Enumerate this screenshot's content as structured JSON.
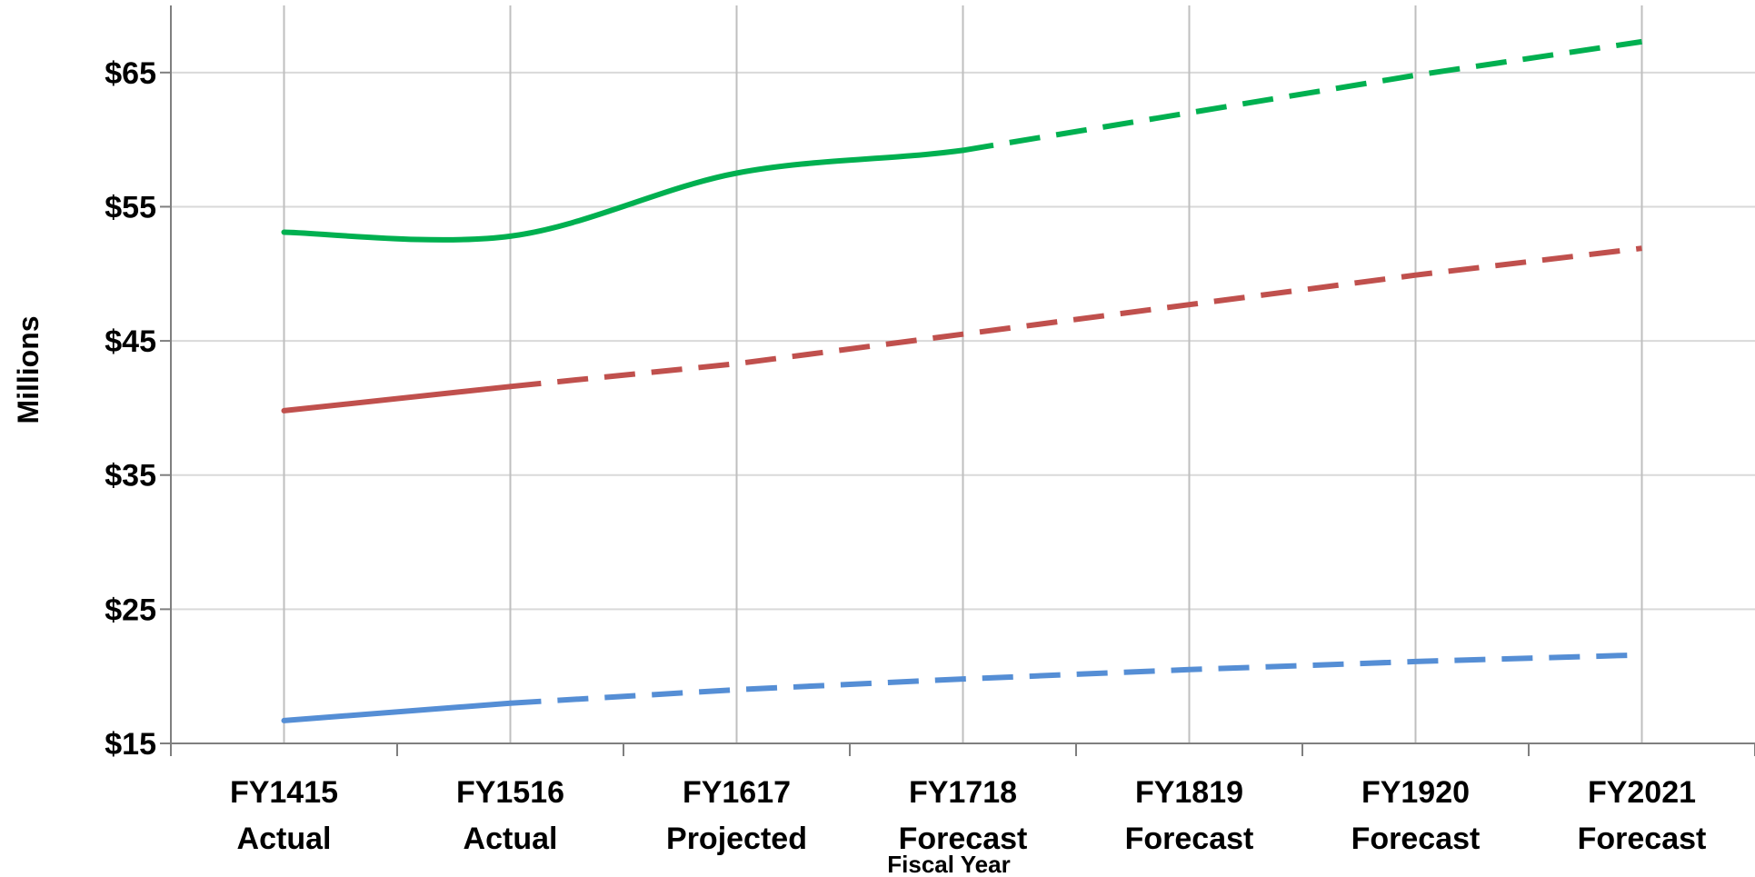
{
  "chart_data": {
    "type": "line",
    "title": "",
    "xlabel": "Fiscal Year",
    "ylabel": "Millions",
    "ylim": [
      15,
      70
    ],
    "yticks": [
      15,
      25,
      35,
      45,
      55,
      65
    ],
    "ytick_labels": [
      "$15",
      "$25",
      "$35",
      "$45",
      "$55",
      "$65"
    ],
    "categories": [
      [
        "FY1415",
        "Actual"
      ],
      [
        "FY1516",
        "Actual"
      ],
      [
        "FY1617",
        "Projected"
      ],
      [
        "FY1718",
        "Forecast"
      ],
      [
        "FY1819",
        "Forecast"
      ],
      [
        "FY1920",
        "Forecast"
      ],
      [
        "FY2021",
        "Forecast"
      ]
    ],
    "grid": true,
    "legend": "none",
    "series": [
      {
        "color": "#00B050",
        "values": [
          53.1,
          52.8,
          57.5,
          59.2,
          62.0,
          64.8,
          67.3
        ],
        "solid_through_index": 3,
        "smooth": true
      },
      {
        "color": "#C0504D",
        "values": [
          39.8,
          41.6,
          43.3,
          45.5,
          47.7,
          49.9,
          51.9
        ],
        "solid_through_index": 1,
        "smooth": false
      },
      {
        "color": "#558ED5",
        "values": [
          16.7,
          18.0,
          19.0,
          19.8,
          20.5,
          21.1,
          21.6
        ],
        "solid_through_index": 1,
        "smooth": false
      }
    ]
  }
}
